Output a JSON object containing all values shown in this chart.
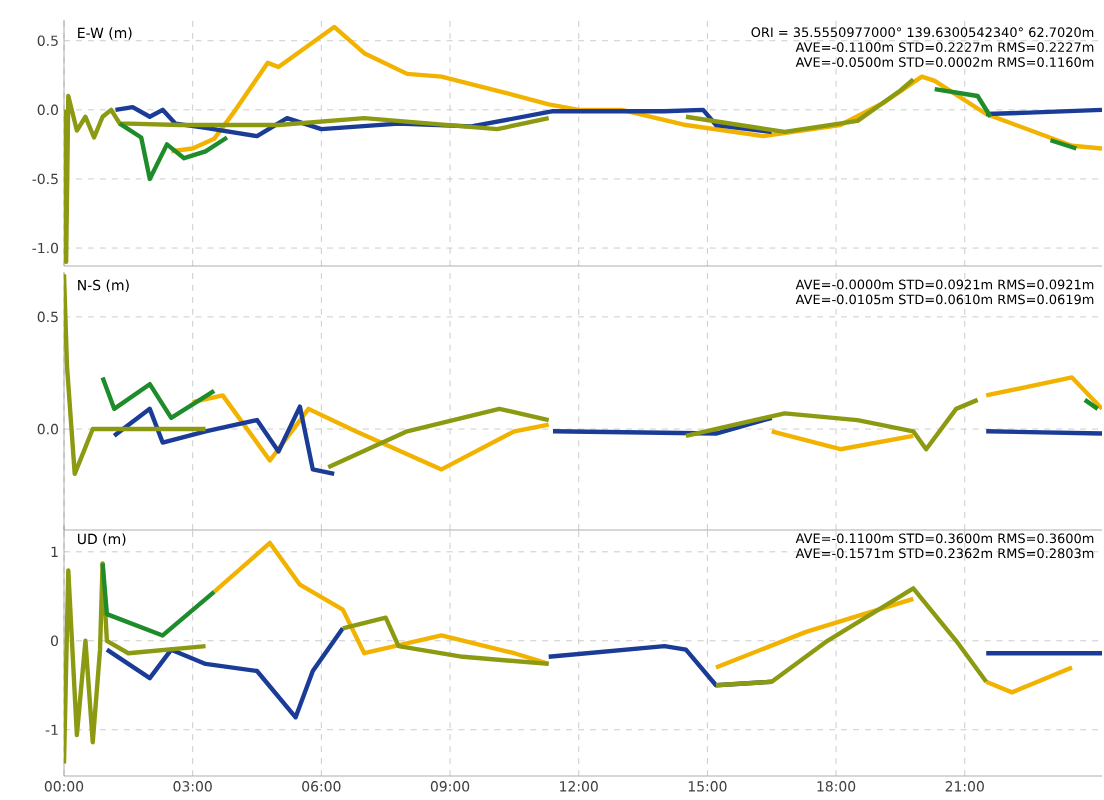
{
  "chart_data": [
    {
      "type": "line",
      "title": "E-W (m)",
      "annotations": [
        "ORI = 35.5550977000° 139.6300542340° 62.7020m",
        "AVE=-0.1100m STD=0.2227m RMS=0.2227m",
        "AVE=-0.0500m STD=0.0002m RMS=0.1160m"
      ],
      "xlim": [
        0,
        24.2
      ],
      "ylim": [
        -1.13,
        0.65
      ],
      "tick_labels": "y",
      "grid": true,
      "xticks": [
        {
          "value": 0,
          "label": null
        },
        {
          "value": 3,
          "label": null
        },
        {
          "value": 6,
          "label": null
        },
        {
          "value": 9,
          "label": null
        },
        {
          "value": 12,
          "label": null
        },
        {
          "value": 15,
          "label": null
        },
        {
          "value": 18,
          "label": null
        },
        {
          "value": 21,
          "label": null
        }
      ],
      "yticks": [
        {
          "value": 0.5,
          "label": "0.5"
        },
        {
          "value": 0,
          "label": "0.0"
        },
        {
          "value": -0.5,
          "label": "-0.5"
        },
        {
          "value": -1,
          "label": "-1.0"
        }
      ],
      "series": [
        {
          "color": "#f2b300",
          "x": [
            2.5,
            3.0,
            3.5,
            4.0,
            4.75,
            5.0,
            6.3,
            7.0,
            8.0,
            8.8,
            10.2,
            11.3,
            12.0,
            13.0,
            14.5,
            16.3,
            18.1,
            19.1,
            20.0,
            20.3,
            21.5,
            23.5,
            24.2
          ],
          "values": [
            -0.3,
            -0.28,
            -0.21,
            0.0,
            0.34,
            0.31,
            0.6,
            0.41,
            0.26,
            0.24,
            0.13,
            0.04,
            0.0,
            0.0,
            -0.11,
            -0.19,
            -0.11,
            0.05,
            0.24,
            0.21,
            -0.03,
            -0.26,
            -0.28
          ]
        },
        {
          "color": "#1a3c96",
          "x": [
            1.2,
            1.6,
            2.0,
            2.3,
            2.6,
            3.3,
            4.5,
            5.2,
            6.0,
            7.8,
            9.5,
            11.4,
            14.0,
            14.9,
            15.2,
            16.5,
            17.0,
            21.5,
            22.5,
            24.2
          ],
          "values": [
            0.0,
            0.02,
            -0.05,
            0.0,
            -0.1,
            -0.13,
            -0.19,
            -0.06,
            -0.14,
            -0.1,
            -0.12,
            -0.01,
            -0.01,
            0.0,
            -0.11,
            -0.16,
            null,
            -0.03,
            -0.02,
            0.0
          ]
        },
        {
          "color": "#8c9a12",
          "x": [
            0.0,
            0.05,
            0.1,
            0.3,
            0.5,
            0.7,
            0.9,
            1.1,
            1.3,
            1.5,
            2.7,
            5.0,
            7.0,
            10.1,
            11.3,
            12.0,
            14.5,
            16.8,
            18.5,
            19.5,
            19.8
          ],
          "values": [
            0.0,
            -1.1,
            0.1,
            -0.15,
            -0.05,
            -0.2,
            -0.05,
            0.0,
            -0.1,
            -0.1,
            -0.11,
            -0.11,
            -0.06,
            -0.14,
            -0.06,
            null,
            -0.05,
            -0.16,
            -0.08,
            0.14,
            0.22
          ]
        },
        {
          "color": "#1e8c2a",
          "x": [
            1.3,
            1.8,
            2.0,
            2.4,
            2.8,
            3.3,
            3.8,
            4.0,
            20.3,
            21.3,
            21.6,
            22.0,
            23.0,
            23.6
          ],
          "values": [
            -0.1,
            -0.2,
            -0.5,
            -0.25,
            -0.35,
            -0.3,
            -0.2,
            null,
            0.15,
            0.1,
            -0.05,
            null,
            -0.22,
            -0.28
          ]
        }
      ]
    },
    {
      "type": "line",
      "title": "N-S (m)",
      "annotations": [
        "AVE=-0.0000m STD=0.0921m RMS=0.0921m",
        "AVE=-0.0105m STD=0.0610m RMS=0.0619m"
      ],
      "xlim": [
        0,
        24.2
      ],
      "ylim": [
        -0.45,
        0.7
      ],
      "tick_labels": "y",
      "grid": true,
      "xticks": [
        {
          "value": 0,
          "label": null
        },
        {
          "value": 3,
          "label": null
        },
        {
          "value": 6,
          "label": null
        },
        {
          "value": 9,
          "label": null
        },
        {
          "value": 12,
          "label": null
        },
        {
          "value": 15,
          "label": null
        },
        {
          "value": 18,
          "label": null
        },
        {
          "value": 21,
          "label": null
        }
      ],
      "yticks": [
        {
          "value": 0.5,
          "label": "0.5"
        },
        {
          "value": 0,
          "label": "0.0"
        }
      ],
      "series": [
        {
          "color": "#f2b300",
          "x": [
            3.0,
            3.7,
            4.8,
            5.7,
            6.8,
            8.8,
            10.5,
            11.3,
            12.0,
            16.5,
            18.1,
            19.8,
            20.5,
            21.5,
            23.5,
            24.2
          ],
          "values": [
            0.12,
            0.15,
            -0.14,
            0.09,
            -0.01,
            -0.18,
            -0.01,
            0.02,
            null,
            -0.01,
            -0.09,
            -0.03,
            null,
            0.15,
            0.23,
            0.09
          ]
        },
        {
          "color": "#1a3c96",
          "x": [
            1.17,
            2.0,
            2.3,
            3.3,
            4.5,
            5.0,
            5.5,
            5.8,
            6.3,
            7.0,
            11.4,
            15.2,
            16.5,
            17.0,
            21.5,
            24.2
          ],
          "values": [
            -0.03,
            0.09,
            -0.06,
            -0.01,
            0.04,
            -0.1,
            0.1,
            -0.18,
            -0.2,
            null,
            -0.01,
            -0.02,
            0.05,
            null,
            -0.01,
            -0.02
          ]
        },
        {
          "color": "#8c9a12",
          "x": [
            0.0,
            0.07,
            0.25,
            0.67,
            0.9,
            3.3,
            4.0,
            6.16,
            8.0,
            10.15,
            11.3,
            12.0,
            14.5,
            16.8,
            18.5,
            19.8,
            20.1,
            20.8,
            21.3
          ],
          "values": [
            0.69,
            0.28,
            -0.2,
            0.0,
            0.0,
            0.0,
            null,
            -0.17,
            -0.01,
            0.09,
            0.04,
            null,
            -0.03,
            0.07,
            0.04,
            -0.01,
            -0.09,
            0.09,
            0.13
          ]
        },
        {
          "color": "#1e8c2a",
          "x": [
            0.9,
            1.17,
            2.0,
            2.5,
            3.5,
            4.0,
            23.8,
            24.1
          ],
          "values": [
            0.23,
            0.09,
            0.2,
            0.05,
            0.17,
            null,
            0.13,
            0.09
          ]
        }
      ]
    },
    {
      "type": "line",
      "title": "UD (m)",
      "annotations": [
        "AVE=-0.1100m STD=0.3600m RMS=0.3600m",
        "AVE=-0.1571m STD=0.2362m RMS=0.2803m"
      ],
      "xlim": [
        0,
        24.2
      ],
      "ylim": [
        -1.52,
        1.29
      ],
      "grid": true,
      "xticks": [
        {
          "value": 0,
          "label": "00:00"
        },
        {
          "value": 3,
          "label": "03:00"
        },
        {
          "value": 6,
          "label": "06:00"
        },
        {
          "value": 9,
          "label": "09:00"
        },
        {
          "value": 12,
          "label": "12:00"
        },
        {
          "value": 15,
          "label": "15:00"
        },
        {
          "value": 18,
          "label": "18:00"
        },
        {
          "value": 21,
          "label": "21:00"
        }
      ],
      "yticks": [
        {
          "value": 1,
          "label": "1"
        },
        {
          "value": 0,
          "label": "0"
        },
        {
          "value": -1,
          "label": "-1"
        }
      ],
      "series": [
        {
          "color": "#f2b300",
          "x": [
            3.5,
            4.8,
            5.5,
            6.5,
            7.0,
            8.8,
            10.5,
            11.3,
            12.0,
            15.2,
            17.3,
            19.8,
            20.5,
            21.5,
            22.1,
            23.5
          ],
          "values": [
            0.55,
            1.1,
            0.63,
            0.35,
            -0.14,
            0.06,
            -0.14,
            -0.26,
            null,
            -0.3,
            0.1,
            0.47,
            null,
            -0.46,
            -0.58,
            -0.3
          ]
        },
        {
          "color": "#1a3c96",
          "x": [
            1.0,
            2.0,
            2.5,
            3.3,
            4.5,
            5.4,
            5.8,
            6.5,
            7.0,
            11.3,
            14.0,
            14.5,
            15.2,
            16.5,
            17.0,
            21.5,
            24.2
          ],
          "values": [
            -0.1,
            -0.42,
            -0.1,
            -0.26,
            -0.34,
            -0.86,
            -0.34,
            0.14,
            null,
            -0.18,
            -0.06,
            -0.1,
            -0.5,
            -0.46,
            null,
            -0.14,
            -0.14
          ]
        },
        {
          "color": "#8c9a12",
          "x": [
            0.0,
            0.1,
            0.3,
            0.5,
            0.67,
            0.84,
            0.9,
            1.0,
            1.5,
            3.3,
            4.0,
            6.5,
            7.5,
            7.8,
            9.3,
            11.3,
            12.0,
            15.2,
            16.5,
            17.8,
            19.8,
            20.8,
            21.5
          ],
          "values": [
            -1.38,
            0.79,
            -1.06,
            0.0,
            -1.14,
            -0.1,
            0.87,
            0.0,
            -0.14,
            -0.06,
            null,
            0.14,
            0.26,
            -0.06,
            -0.18,
            -0.26,
            null,
            -0.5,
            -0.46,
            0.0,
            0.59,
            0.0,
            -0.46
          ]
        },
        {
          "color": "#1e8c2a",
          "x": [
            0.9,
            1.0,
            2.3,
            3.5
          ],
          "values": [
            0.87,
            0.3,
            0.06,
            0.55
          ]
        }
      ]
    }
  ]
}
